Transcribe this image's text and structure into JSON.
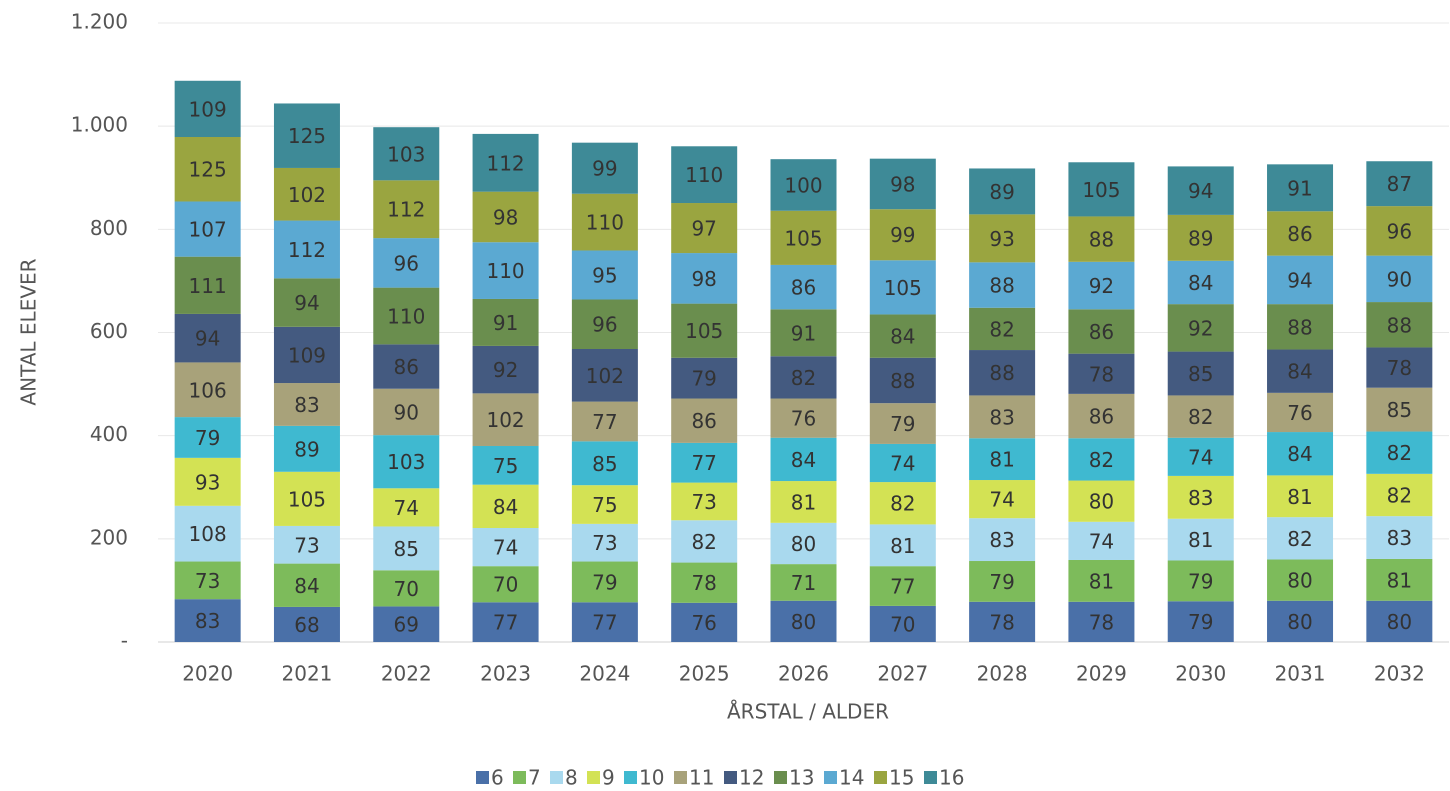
{
  "chart_data": {
    "type": "stacked_bar",
    "x_label": "ÅRSTAL / ALDER",
    "y_label": "ANTAL ELEVER",
    "categories": [
      "2020",
      "2021",
      "2022",
      "2023",
      "2024",
      "2025",
      "2026",
      "2027",
      "2028",
      "2029",
      "2030",
      "2031",
      "2032"
    ],
    "ylim": [
      0,
      1200
    ],
    "yticks": [
      {
        "value": 0,
        "label": "-"
      },
      200,
      400,
      600,
      800,
      {
        "value": 1000,
        "label": "1.000"
      },
      {
        "value": 1200,
        "label": "1.200"
      }
    ],
    "grid": true,
    "legend": "bottom",
    "series": [
      {
        "name": "6",
        "color": "#4a70a8",
        "values": [
          83,
          68,
          69,
          77,
          77,
          76,
          80,
          70,
          78,
          78,
          79,
          80,
          80
        ]
      },
      {
        "name": "7",
        "color": "#7dbb5b",
        "values": [
          73,
          84,
          70,
          70,
          79,
          78,
          71,
          77,
          79,
          81,
          79,
          80,
          81
        ]
      },
      {
        "name": "8",
        "color": "#a9d9ee",
        "values": [
          108,
          73,
          85,
          74,
          73,
          82,
          80,
          81,
          83,
          74,
          81,
          82,
          83
        ]
      },
      {
        "name": "9",
        "color": "#d3e254",
        "values": [
          93,
          105,
          74,
          84,
          75,
          73,
          81,
          82,
          74,
          80,
          83,
          81,
          82
        ]
      },
      {
        "name": "10",
        "color": "#3fb9d0",
        "values": [
          79,
          89,
          103,
          75,
          85,
          77,
          84,
          74,
          81,
          82,
          74,
          84,
          82
        ]
      },
      {
        "name": "11",
        "color": "#a8a27a",
        "values": [
          106,
          83,
          90,
          102,
          77,
          86,
          76,
          79,
          83,
          86,
          82,
          76,
          85
        ]
      },
      {
        "name": "12",
        "color": "#445a80",
        "values": [
          94,
          109,
          86,
          92,
          102,
          79,
          82,
          88,
          88,
          78,
          85,
          84,
          78
        ]
      },
      {
        "name": "13",
        "color": "#6a8e4e",
        "values": [
          111,
          94,
          110,
          91,
          96,
          105,
          91,
          84,
          82,
          86,
          92,
          88,
          88
        ]
      },
      {
        "name": "14",
        "color": "#5ba9d2",
        "values": [
          107,
          112,
          96,
          110,
          95,
          98,
          86,
          105,
          88,
          92,
          84,
          94,
          90
        ]
      },
      {
        "name": "15",
        "color": "#9aa540",
        "values": [
          125,
          102,
          112,
          98,
          110,
          97,
          105,
          99,
          93,
          88,
          89,
          86,
          96
        ]
      },
      {
        "name": "16",
        "color": "#3e8a97",
        "values": [
          109,
          125,
          103,
          112,
          99,
          110,
          100,
          98,
          89,
          105,
          94,
          91,
          87
        ]
      }
    ]
  }
}
